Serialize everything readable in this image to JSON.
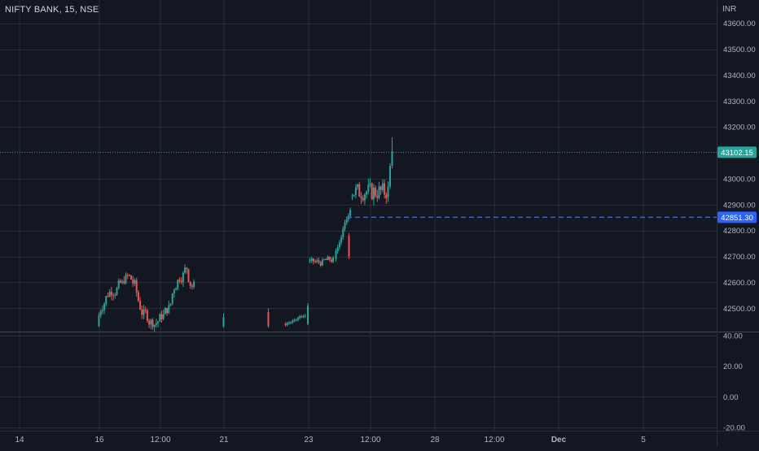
{
  "header": {
    "symbol_title": "NIFTY BANK, 15, NSE",
    "currency": "INR"
  },
  "chart_data": {
    "type": "candlestick",
    "x_tick_labels": [
      "14",
      "16",
      "12:00",
      "21",
      "23",
      "12:00",
      "28",
      "12:00",
      "Dec",
      "5"
    ],
    "price_axis": {
      "ticks": [
        "43600.00",
        "43500.00",
        "43400.00",
        "43300.00",
        "43200.00",
        "43000.00",
        "42900.00",
        "42800.00",
        "42700.00",
        "42600.00",
        "42500.00"
      ],
      "range": [
        42410,
        43690
      ]
    },
    "indicator_axis": {
      "ticks": [
        "40.00",
        "20.00",
        "0.00",
        "-20.00"
      ],
      "range": [
        -22,
        42
      ]
    },
    "last_price": {
      "label": "43102.15",
      "value": 43102.15,
      "color": "#26a69a"
    },
    "marked_price": {
      "label": "42851.30",
      "value": 42851.3,
      "color": "#2962ff"
    },
    "colors": {
      "up": "#26a69a",
      "down": "#ef5350",
      "grid": "#2a2e39",
      "background": "#131722"
    }
  }
}
